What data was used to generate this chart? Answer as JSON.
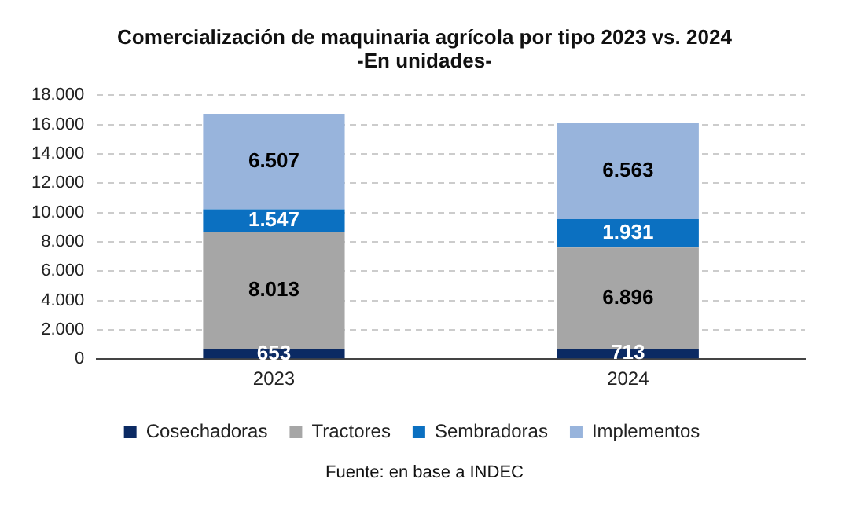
{
  "chart_data": {
    "type": "bar",
    "title": "Comercialización de maquinaria agrícola por tipo 2023 vs. 2024",
    "subtitle": "-En unidades-",
    "categories": [
      "2023",
      "2024"
    ],
    "stacked": true,
    "series": [
      {
        "name": "Cosechadoras",
        "color": "#0b2a63",
        "values": [
          653,
          713
        ],
        "value_labels": [
          "653",
          "713"
        ]
      },
      {
        "name": "Tractores",
        "color": "#a6a6a6",
        "values": [
          8013,
          6896
        ],
        "value_labels": [
          "8.013",
          "6.896"
        ]
      },
      {
        "name": "Sembradoras",
        "color": "#0b70c1",
        "values": [
          1547,
          1931
        ],
        "value_labels": [
          "1.547",
          "1.931"
        ]
      },
      {
        "name": "Implementos",
        "color": "#98b4dc",
        "values": [
          6507,
          6563
        ],
        "value_labels": [
          "6.507",
          "6.563"
        ]
      }
    ],
    "ylim": [
      0,
      18000
    ],
    "yticks": [
      {
        "value": 0,
        "label": "0"
      },
      {
        "value": 2000,
        "label": "2.000"
      },
      {
        "value": 4000,
        "label": "4.000"
      },
      {
        "value": 6000,
        "label": "6.000"
      },
      {
        "value": 8000,
        "label": "8.000"
      },
      {
        "value": 10000,
        "label": "10.000"
      },
      {
        "value": 12000,
        "label": "12.000"
      },
      {
        "value": 14000,
        "label": "14.000"
      },
      {
        "value": 16000,
        "label": "16.000"
      },
      {
        "value": 18000,
        "label": "18.000"
      }
    ],
    "grid": "y",
    "legend": "bottom",
    "line_style": "dashed",
    "annotations": [
      "Fuente: en base a INDEC"
    ]
  }
}
